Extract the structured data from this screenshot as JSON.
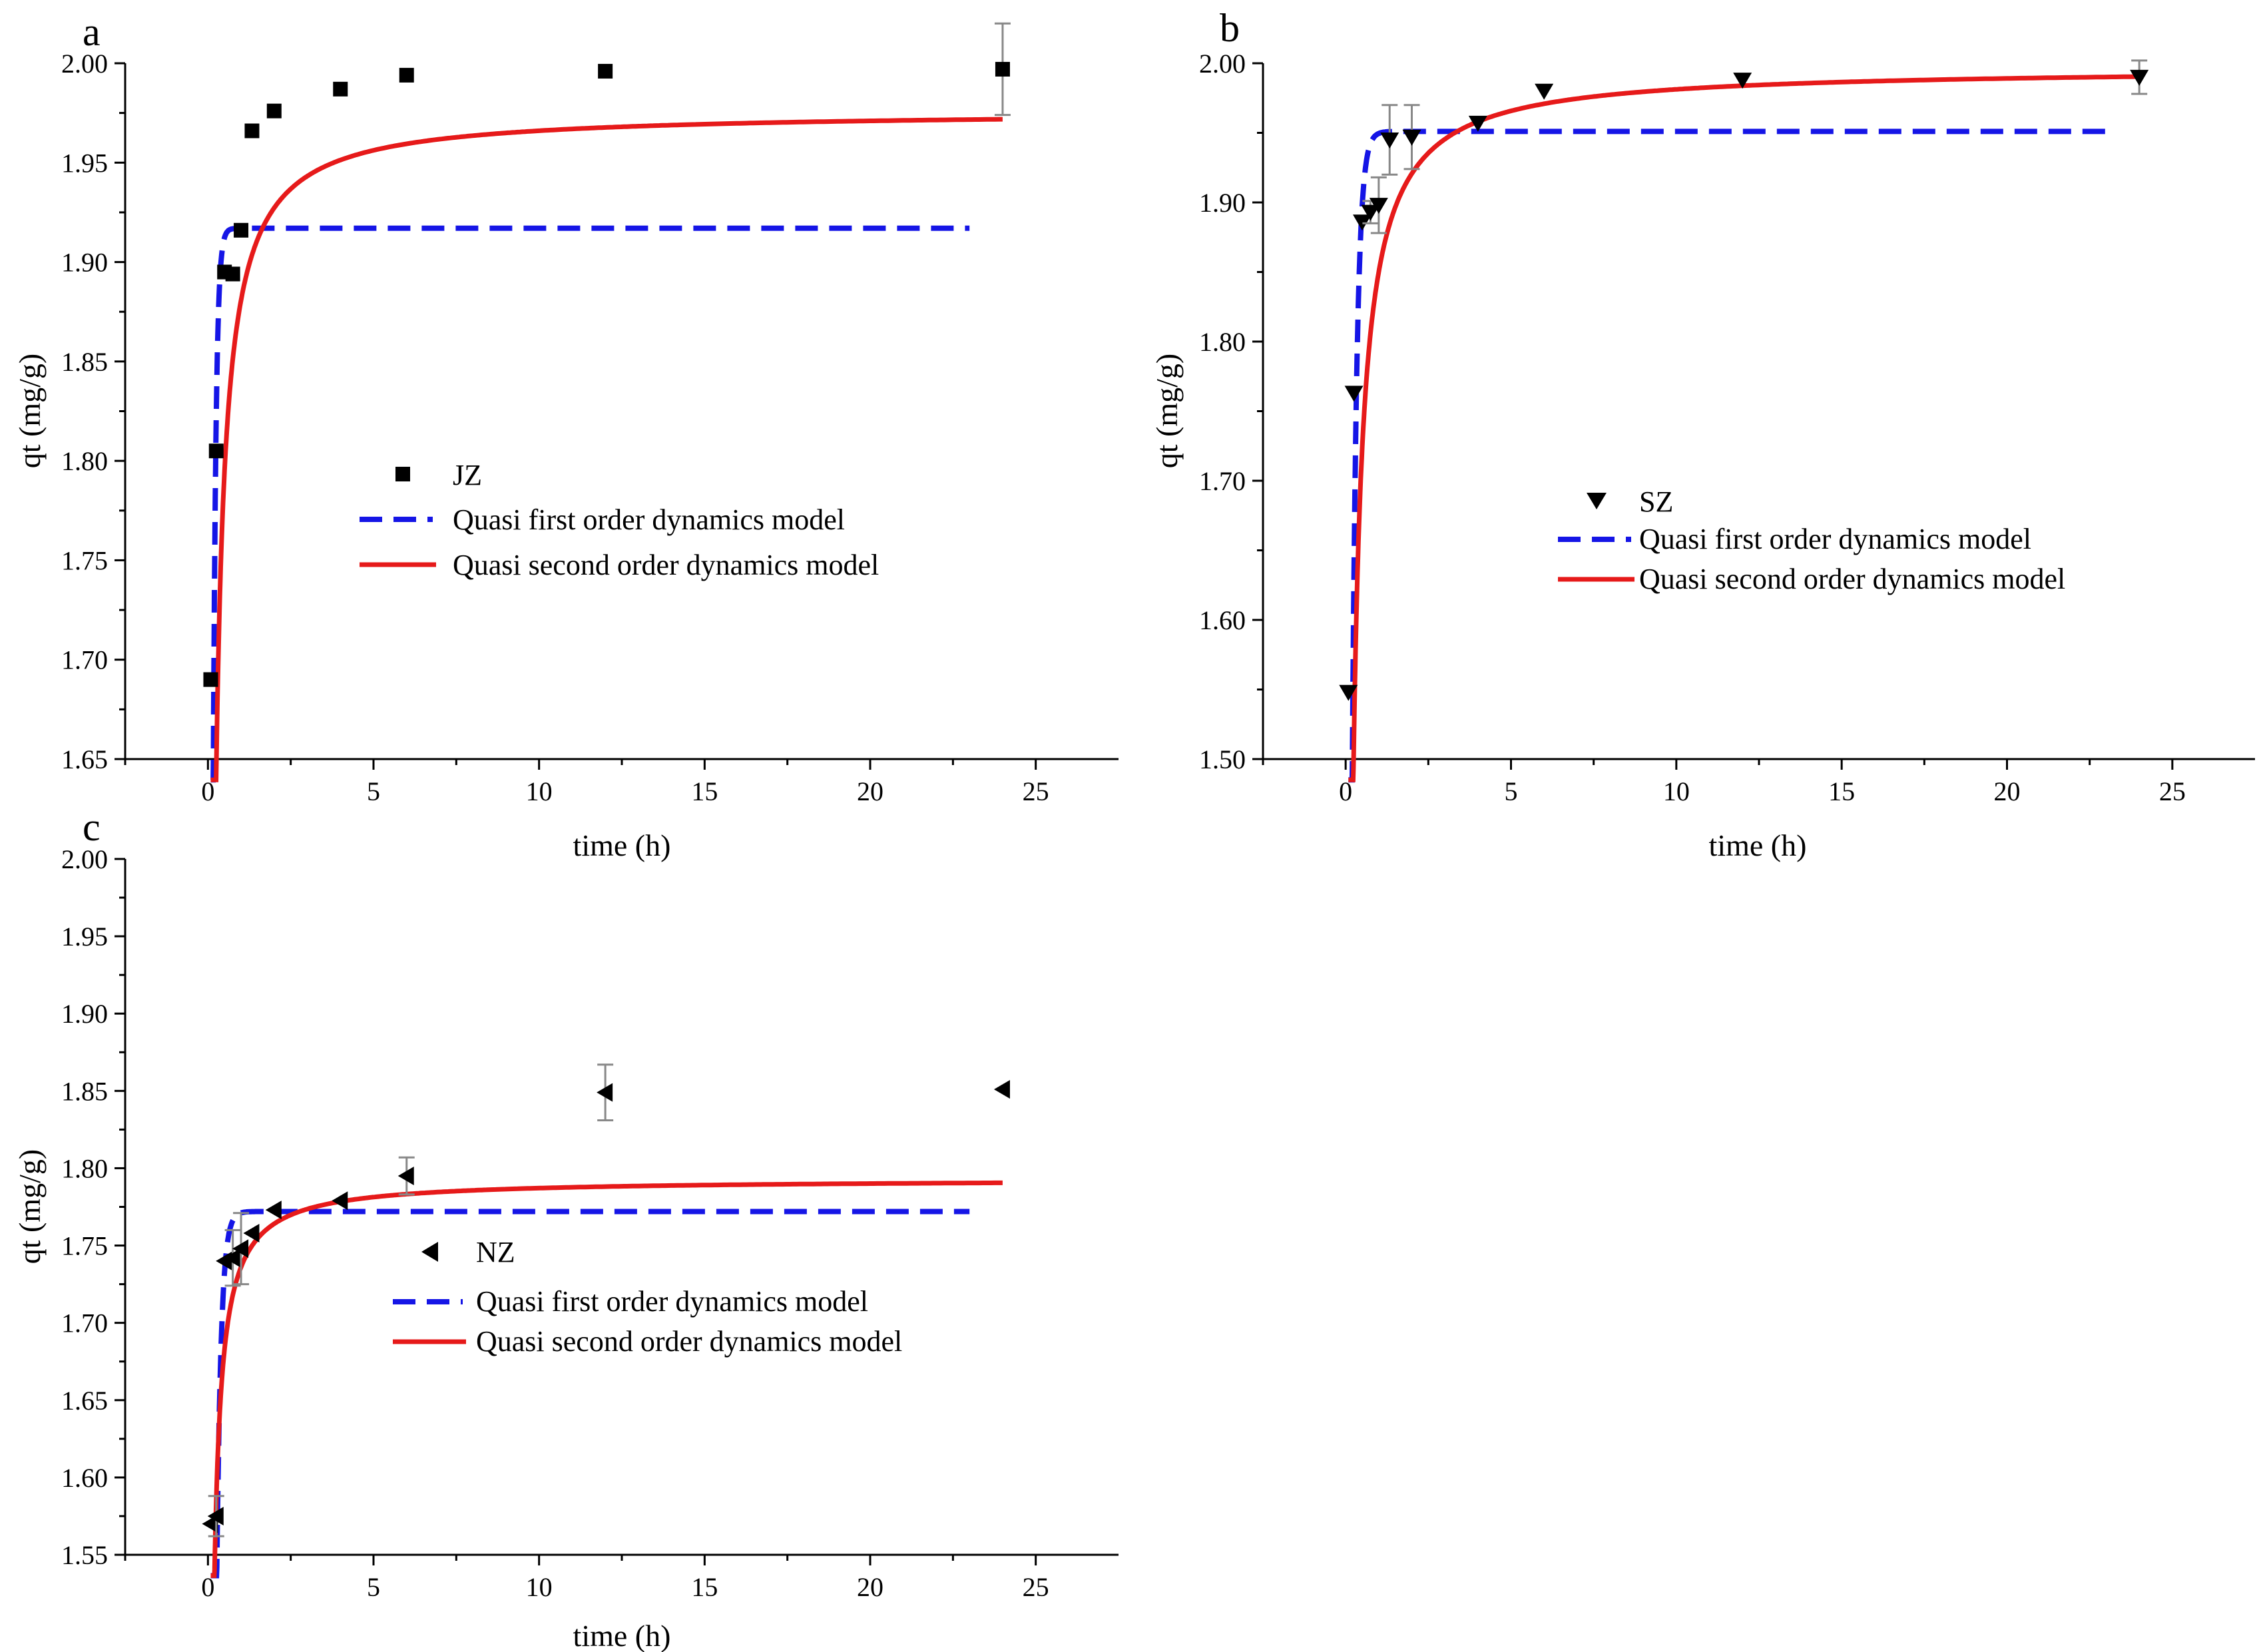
{
  "chart_data": [
    {
      "panel": "a",
      "type": "scatter",
      "xlabel": "time (h)",
      "ylabel": "qt (mg/g)",
      "xlim": [
        -2.5,
        27.5
      ],
      "ylim": [
        1.65,
        2.0
      ],
      "xticks": [
        0,
        5,
        10,
        15,
        20,
        25
      ],
      "yticks": [
        1.65,
        1.7,
        1.75,
        1.8,
        1.85,
        1.9,
        1.95,
        2.0
      ],
      "ytick_labels": [
        "1.65",
        "1.70",
        "1.75",
        "1.80",
        "1.85",
        "1.90",
        "1.95",
        "2.00"
      ],
      "series": [
        {
          "name": "JZ",
          "kind": "points",
          "marker": "square",
          "x": [
            0.083,
            0.25,
            0.5,
            0.75,
            1,
            1.33,
            2,
            4,
            6,
            12,
            24
          ],
          "y": [
            1.69,
            1.805,
            1.895,
            1.894,
            1.916,
            1.966,
            1.976,
            1.987,
            1.994,
            1.996,
            1.997
          ],
          "err": [
            0,
            0,
            0,
            0,
            0,
            0,
            0,
            0,
            0,
            0,
            0.023
          ]
        },
        {
          "name": "Quasi first order dynamics model",
          "kind": "pfo",
          "qe": 1.917,
          "k": 12.0,
          "t0": 0.083,
          "tmax": 23
        },
        {
          "name": "Quasi second order dynamics model",
          "kind": "pso",
          "qe": 1.976,
          "k": 10.0,
          "t0": 0.083,
          "tmax": 24
        }
      ],
      "legend_position": "center"
    },
    {
      "panel": "b",
      "type": "scatter",
      "xlabel": "time (h)",
      "ylabel": "qt (mg/g)",
      "xlim": [
        -2.5,
        27.5
      ],
      "ylim": [
        1.5,
        2.0
      ],
      "xticks": [
        0,
        5,
        10,
        15,
        20,
        25
      ],
      "yticks": [
        1.5,
        1.6,
        1.7,
        1.8,
        1.9,
        2.0
      ],
      "ytick_labels": [
        "1.50",
        "1.60",
        "1.70",
        "1.80",
        "1.90",
        "2.00"
      ],
      "series": [
        {
          "name": "SZ",
          "kind": "points",
          "marker": "triangle-down",
          "x": [
            0.083,
            0.25,
            0.5,
            0.75,
            1,
            1.33,
            2,
            4,
            6,
            12,
            24
          ],
          "y": [
            1.548,
            1.763,
            1.886,
            1.893,
            1.898,
            1.945,
            1.947,
            1.957,
            1.98,
            1.988,
            1.99
          ],
          "err": [
            0,
            0,
            0,
            0.008,
            0.02,
            0.025,
            0.023,
            0,
            0,
            0,
            0.012
          ]
        },
        {
          "name": "Quasi first order dynamics model",
          "kind": "pfo",
          "qe": 1.951,
          "k": 7.2,
          "t0": 0.083,
          "tmax": 23
        },
        {
          "name": "Quasi second order dynamics model",
          "kind": "pso",
          "qe": 1.997,
          "k": 6.3,
          "t0": 0.083,
          "tmax": 24
        }
      ],
      "legend_position": "center-right"
    },
    {
      "panel": "c",
      "type": "scatter",
      "xlabel": "time (h)",
      "ylabel": "qt (mg/g)",
      "xlim": [
        -2.5,
        27.5
      ],
      "ylim": [
        1.55,
        2.0
      ],
      "xticks": [
        0,
        5,
        10,
        15,
        20,
        25
      ],
      "yticks": [
        1.55,
        1.6,
        1.65,
        1.7,
        1.75,
        1.8,
        1.85,
        1.9,
        1.95,
        2.0
      ],
      "ytick_labels": [
        "1.55",
        "1.60",
        "1.65",
        "1.70",
        "1.75",
        "1.80",
        "1.85",
        "1.90",
        "1.95",
        "2.00"
      ],
      "series": [
        {
          "name": "NZ",
          "kind": "points",
          "marker": "triangle-left",
          "x": [
            0.083,
            0.25,
            0.5,
            0.75,
            1,
            1.33,
            2,
            4,
            6,
            12,
            24
          ],
          "y": [
            1.57,
            1.575,
            1.74,
            1.742,
            1.748,
            1.758,
            1.773,
            1.779,
            1.795,
            1.849,
            1.851
          ],
          "err": [
            0,
            0.013,
            0,
            0.018,
            0.023,
            0,
            0,
            0,
            0.012,
            0.018,
            0
          ]
        },
        {
          "name": "Quasi first order dynamics model",
          "kind": "pfo",
          "qe": 1.772,
          "k": 7.6,
          "t0": 0.083,
          "tmax": 23
        },
        {
          "name": "Quasi second order dynamics model",
          "kind": "pso",
          "qe": 1.793,
          "k": 17.0,
          "t0": 0.083,
          "tmax": 24
        }
      ],
      "legend_position": "center"
    }
  ],
  "colors": {
    "points": "#000000",
    "pfo": "#1515e6",
    "pso": "#e61a1a",
    "errorbar": "#888888"
  }
}
